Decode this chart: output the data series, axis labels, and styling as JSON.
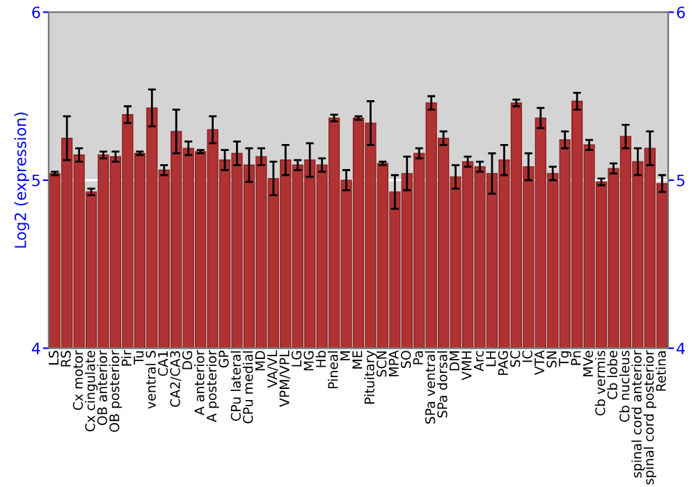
{
  "chart_data": {
    "type": "bar",
    "ylabel": "Log2 (expression)",
    "categories": [
      "LS",
      "RS",
      "Cx motor",
      "Cx cingulate",
      "OB anterior",
      "OB posterior",
      "Pir",
      "Tu",
      "ventral S",
      "CA1",
      "CA2/CA3",
      "DG",
      "A anterior",
      "A posterior",
      "GP",
      "CPu lateral",
      "CPu medial",
      "MD",
      "VA/VL",
      "VPM/VPL",
      "LG",
      "MG",
      "Hb",
      "Pineal",
      "M",
      "ME",
      "Pituitary",
      "SCN",
      "MPA",
      "SO",
      "Pa",
      "SPa ventral",
      "SPa dorsal",
      "DM",
      "VMH",
      "Arc",
      "LH",
      "PAG",
      "SC",
      "IC",
      "VTA",
      "SN",
      "Tg",
      "Pn",
      "MVe",
      "Cb vermis",
      "Cb lobe",
      "Cb nucleus",
      "spinal cord anterior",
      "spinal cord posterior",
      "Retina"
    ],
    "values": [
      5.04,
      5.25,
      5.15,
      4.93,
      5.15,
      5.14,
      5.39,
      5.16,
      5.43,
      5.06,
      5.29,
      5.19,
      5.17,
      5.3,
      5.12,
      5.16,
      5.09,
      5.14,
      5.01,
      5.12,
      5.09,
      5.12,
      5.09,
      5.37,
      5.0,
      5.37,
      5.34,
      5.1,
      4.93,
      5.04,
      5.16,
      5.46,
      5.25,
      5.02,
      5.11,
      5.08,
      5.04,
      5.12,
      5.46,
      5.08,
      5.37,
      5.04,
      5.24,
      5.47,
      5.21,
      4.99,
      5.07,
      5.26,
      5.11,
      5.19,
      4.98
    ],
    "errors": [
      0.01,
      0.13,
      0.04,
      0.02,
      0.02,
      0.03,
      0.05,
      0.01,
      0.11,
      0.03,
      0.13,
      0.04,
      0.01,
      0.08,
      0.06,
      0.07,
      0.1,
      0.05,
      0.1,
      0.09,
      0.03,
      0.1,
      0.04,
      0.02,
      0.06,
      0.01,
      0.13,
      0.01,
      0.1,
      0.1,
      0.03,
      0.04,
      0.04,
      0.07,
      0.03,
      0.03,
      0.12,
      0.09,
      0.02,
      0.08,
      0.06,
      0.04,
      0.05,
      0.05,
      0.03,
      0.02,
      0.03,
      0.07,
      0.08,
      0.1,
      0.05
    ],
    "color": "#b03232",
    "ylim": [
      4,
      6
    ],
    "yticks": [
      4,
      5,
      6
    ],
    "y2lim": [
      4,
      6
    ],
    "y2ticks": [
      4,
      5,
      6
    ],
    "grid": "y"
  }
}
